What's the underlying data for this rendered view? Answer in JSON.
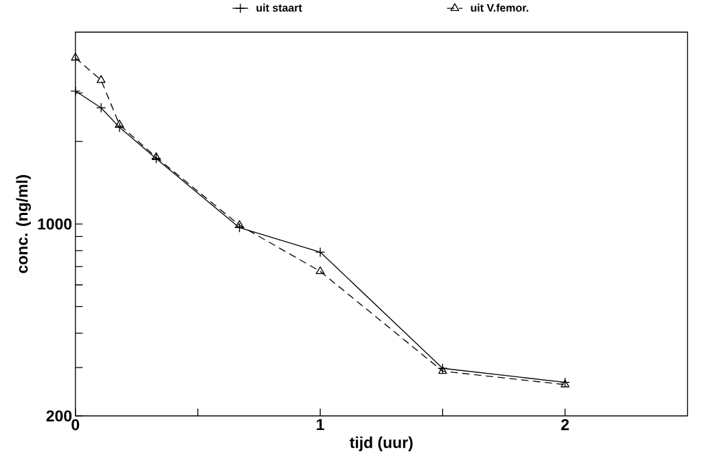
{
  "chart_data": {
    "type": "line",
    "xlabel": "tijd (uur)",
    "ylabel": "conc. (ng/ml)",
    "log": "y",
    "xlim": [
      0,
      2.5
    ],
    "ylim": [
      200,
      5000
    ],
    "xticks": [
      0,
      {
        "value": 0.5,
        "label": null
      },
      1,
      {
        "value": 1.5,
        "label": null
      },
      2
    ],
    "yticks": [
      200,
      {
        "value": 300,
        "label": null
      },
      {
        "value": 400,
        "label": null
      },
      {
        "value": 500,
        "label": null
      },
      {
        "value": 600,
        "label": null
      },
      {
        "value": 700,
        "label": null
      },
      {
        "value": 800,
        "label": null
      },
      {
        "value": 900,
        "label": null
      },
      1000,
      {
        "value": 2000,
        "label": null
      },
      {
        "value": 3000,
        "label": null
      }
    ],
    "legend": "top",
    "grid": false,
    "series": [
      {
        "name": "uit staart",
        "color": "#000000",
        "marker": "cross",
        "line_style": "solid",
        "x": [
          0,
          0.105,
          0.18,
          0.33,
          0.67,
          1,
          1.5,
          2
        ],
        "values": [
          3050,
          2650,
          2250,
          1730,
          970,
          790,
          298,
          265
        ]
      },
      {
        "name": "uit V.femor.",
        "color": "#000000",
        "marker": "triangle",
        "line_style": "dashed",
        "x": [
          0,
          0.105,
          0.18,
          0.33,
          0.67,
          1,
          1.5,
          2
        ],
        "values": [
          4030,
          3340,
          2300,
          1750,
          990,
          672,
          291,
          260
        ]
      }
    ]
  }
}
